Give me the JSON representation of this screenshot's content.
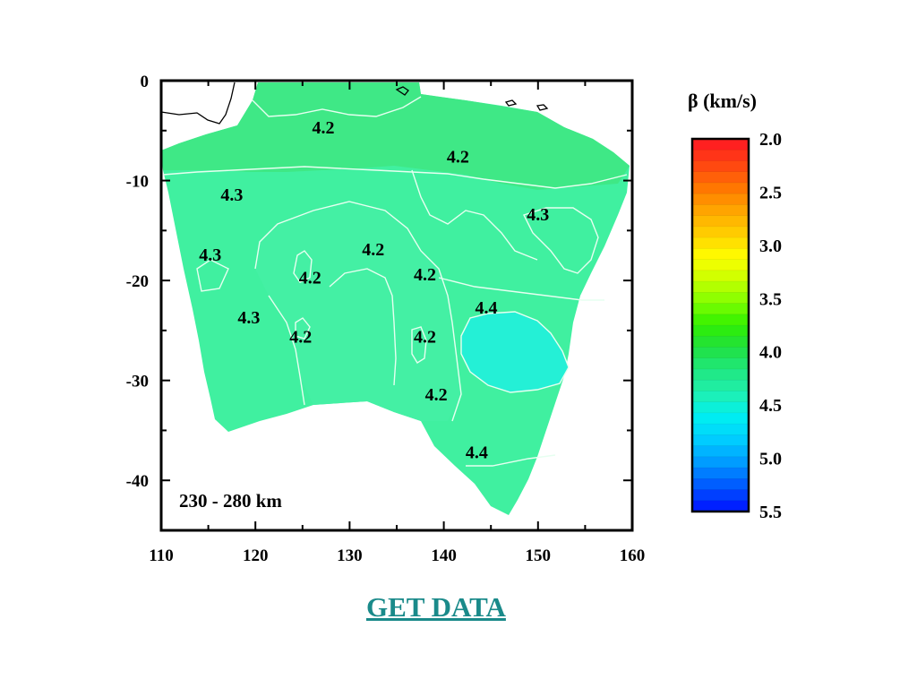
{
  "map": {
    "x_axis": {
      "min": 110,
      "max": 160,
      "ticks": [
        "110",
        "120",
        "130",
        "140",
        "150",
        "160"
      ]
    },
    "y_axis": {
      "min": -45,
      "max": 0,
      "ticks": [
        "0",
        "-10",
        "-20",
        "-30",
        "-40"
      ]
    },
    "depth_range_label": "230 - 280 km",
    "contour_labels": [
      {
        "text": "4.2",
        "lon": 127.2,
        "lat": -5.3
      },
      {
        "text": "4.2",
        "lon": 141.5,
        "lat": -8.2
      },
      {
        "text": "4.3",
        "lon": 117.5,
        "lat": -12.0
      },
      {
        "text": "4.3",
        "lon": 150.0,
        "lat": -14.0
      },
      {
        "text": "4.2",
        "lon": 132.5,
        "lat": -17.5
      },
      {
        "text": "4.3",
        "lon": 115.2,
        "lat": -18.0
      },
      {
        "text": "4.2",
        "lon": 125.8,
        "lat": -20.3
      },
      {
        "text": "4.2",
        "lon": 138.0,
        "lat": -20.0
      },
      {
        "text": "4.4",
        "lon": 144.5,
        "lat": -23.3
      },
      {
        "text": "4.3",
        "lon": 119.3,
        "lat": -24.3
      },
      {
        "text": "4.2",
        "lon": 124.8,
        "lat": -26.2
      },
      {
        "text": "4.2",
        "lon": 138.0,
        "lat": -26.2
      },
      {
        "text": "4.2",
        "lon": 139.2,
        "lat": -32.0
      },
      {
        "text": "4.4",
        "lon": 143.5,
        "lat": -37.8
      }
    ],
    "colors": {
      "mainland": "#40f0a0",
      "north_band": "#3fe886",
      "central_band": "#4af0a0",
      "high_velocity": "#20f4e0",
      "contour_line": "#e6fff0"
    }
  },
  "colorbar": {
    "title": "β (km/s)",
    "min": 2.0,
    "max": 5.5,
    "tick_labels": [
      "2.0",
      "2.5",
      "3.0",
      "3.5",
      "4.0",
      "4.5",
      "5.0",
      "5.5"
    ],
    "colors_top_to_bottom": [
      "#ff2020",
      "#ff4a10",
      "#ff7a00",
      "#ffa800",
      "#ffd000",
      "#ffff00",
      "#c8ff00",
      "#80ff00",
      "#30f000",
      "#20e040",
      "#20e880",
      "#20f0b0",
      "#00f0f0",
      "#00d0ff",
      "#00a0ff",
      "#0060ff",
      "#0020ff"
    ]
  },
  "link": {
    "label": "GET DATA"
  }
}
